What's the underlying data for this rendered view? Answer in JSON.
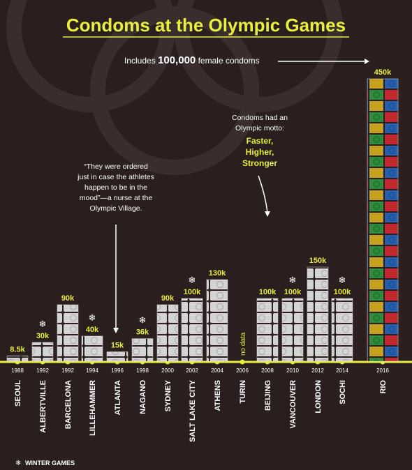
{
  "chart_data": {
    "type": "bar",
    "title": "Condoms at the Olympic Games",
    "categories": [
      "SEOUL",
      "ALBERTVILLE",
      "BARCELONA",
      "LILLEHAMMER",
      "ATLANTA",
      "NAGANO",
      "SYDNEY",
      "SALT LAKE CITY",
      "ATHENS",
      "TURIN",
      "BEIJING",
      "VANCOUVER",
      "LONDON",
      "SOCHI",
      "RIO"
    ],
    "years": [
      "1988",
      "1992",
      "1992",
      "1994",
      "1996",
      "1998",
      "2000",
      "2002",
      "2004",
      "2006",
      "2008",
      "2010",
      "2012",
      "2014",
      "2016"
    ],
    "winter": [
      false,
      true,
      false,
      true,
      false,
      true,
      false,
      true,
      false,
      true,
      false,
      true,
      false,
      true,
      false
    ],
    "values": [
      8500,
      30000,
      90000,
      40000,
      15000,
      36000,
      90000,
      100000,
      130000,
      null,
      100000,
      100000,
      150000,
      100000,
      450000
    ],
    "value_labels": [
      "8.5k",
      "30k",
      "90k",
      "40k",
      "15k",
      "36k",
      "90k",
      "100k",
      "130k",
      "no data",
      "100k",
      "100k",
      "150k",
      "100k",
      "450k"
    ],
    "color": "#d9d9d9",
    "annotations": {
      "rio_note": [
        "Includes ",
        "100,000",
        " female condoms"
      ],
      "atlanta_quote": [
        "“They were ordered",
        "just in case the athletes",
        "happen to be in the",
        "mood”—a nurse at the",
        "Olympic Village."
      ],
      "beijing_note": [
        "Condoms had an",
        "Olympic motto:"
      ],
      "beijing_motto": [
        "Faster,",
        "Higher,",
        "Stronger"
      ]
    },
    "legend_label": "WINTER GAMES"
  }
}
